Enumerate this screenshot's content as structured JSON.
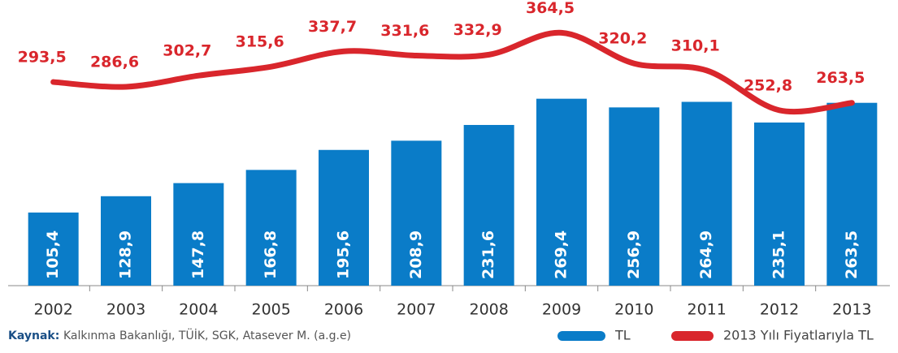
{
  "chart_data": {
    "type": "bar",
    "categories": [
      "2002",
      "2003",
      "2004",
      "2005",
      "2006",
      "2007",
      "2008",
      "2009",
      "2010",
      "2011",
      "2012",
      "2013"
    ],
    "series": [
      {
        "name": "TL",
        "color": "#0a7cc8",
        "type": "bar",
        "values": [
          105.4,
          128.9,
          147.8,
          166.8,
          195.6,
          208.9,
          231.6,
          269.4,
          256.9,
          264.9,
          235.1,
          263.5
        ],
        "value_labels": [
          "105,4",
          "128,9",
          "147,8",
          "166,8",
          "195,6",
          "208,9",
          "231,6",
          "269,4",
          "256,9",
          "264,9",
          "235,1",
          "263,5"
        ]
      },
      {
        "name": "2013 Yılı Fiyatlarıyla TL",
        "color": "#d9262c",
        "type": "line",
        "axis": "y2",
        "values": [
          293.5,
          286.6,
          302.7,
          315.6,
          337.7,
          331.6,
          332.9,
          364.5,
          320.2,
          310.1,
          252.8,
          263.5
        ],
        "value_labels": [
          "293,5",
          "286,6",
          "302,7",
          "315,6",
          "337,7",
          "331,6",
          "332,9",
          "364,5",
          "320,2",
          "310,1",
          "252,8",
          "263,5"
        ]
      }
    ],
    "ylim": [
      0,
      400
    ],
    "y2lim": [
      0,
      400
    ],
    "source": {
      "label": "Kaynak:",
      "text": "Kalkınma Bakanlığı, TÜİK, SGK,  Atasever M. (a.g.e)"
    }
  }
}
